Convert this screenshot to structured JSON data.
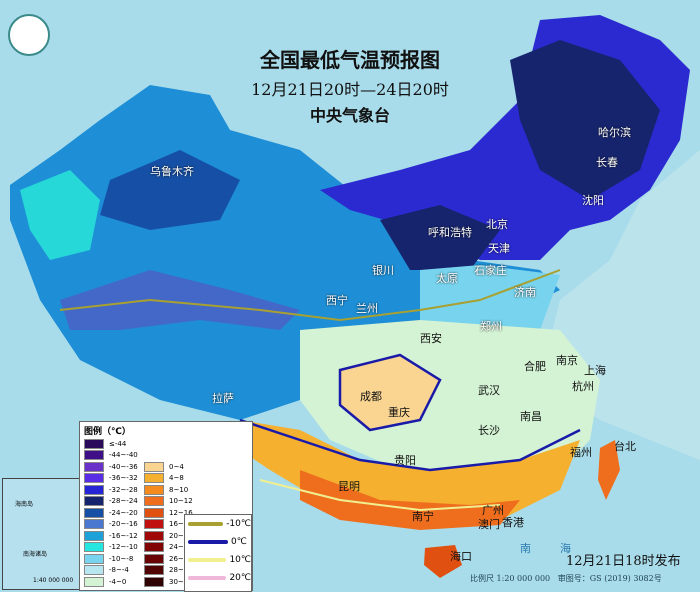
{
  "title": "全国最低气温预报图",
  "period": "12月21日20时—24日20时",
  "issuer": "中央气象台",
  "issue_time": "12月21日18时发布",
  "scale": "比例尺 1:20 000 000",
  "map_no": "审图号：GS (2019) 3082号",
  "legend": {
    "title": "图例（℃）",
    "cold": [
      {
        "label": "≤-44",
        "color": "#2a0a5a"
      },
      {
        "label": "-44~-40",
        "color": "#3e0f86"
      },
      {
        "label": "-40~-36",
        "color": "#6a32c8"
      },
      {
        "label": "-36~-32",
        "color": "#5a2ee6"
      },
      {
        "label": "-32~-28",
        "color": "#2626d6"
      },
      {
        "label": "-28~-24",
        "color": "#16246e"
      },
      {
        "label": "-24~-20",
        "color": "#1650a6"
      },
      {
        "label": "-20~-16",
        "color": "#4a78d0"
      },
      {
        "label": "-16~-12",
        "color": "#1ea0d8"
      },
      {
        "label": "-12~-10",
        "color": "#26e6e0"
      },
      {
        "label": "-10~-8",
        "color": "#78d4ee"
      },
      {
        "label": "-8~-4",
        "color": "#b8e6f0"
      },
      {
        "label": "-4~0",
        "color": "#d4f2d4"
      }
    ],
    "warm": [
      {
        "label": "0~4",
        "color": "#fad592"
      },
      {
        "label": "4~8",
        "color": "#f5b030"
      },
      {
        "label": "8~10",
        "color": "#f58a1e"
      },
      {
        "label": "10~12",
        "color": "#ee6e1e"
      },
      {
        "label": "12~16",
        "color": "#e05010"
      },
      {
        "label": "16~20",
        "color": "#c01010"
      },
      {
        "label": "20~24",
        "color": "#a00808"
      },
      {
        "label": "24~26",
        "color": "#800404"
      },
      {
        "label": "26~28",
        "color": "#6a0404"
      },
      {
        "label": "28~30",
        "color": "#500404"
      },
      {
        "label": "30~32",
        "color": "#300202"
      }
    ],
    "isolines": [
      {
        "label": "-10℃",
        "color": "#a8a030"
      },
      {
        "label": "0℃",
        "color": "#1a1aa8"
      },
      {
        "label": "10℃",
        "color": "#f0f090"
      },
      {
        "label": "20℃",
        "color": "#f0b8d8"
      }
    ]
  },
  "cities": [
    "乌鲁木齐",
    "哈尔滨",
    "长春",
    "沈阳",
    "呼和浩特",
    "北京",
    "天津",
    "石家庄",
    "太原",
    "银川",
    "济南",
    "西宁",
    "兰州",
    "郑州",
    "西安",
    "合肥",
    "南京",
    "上海",
    "杭州",
    "武汉",
    "成都",
    "重庆",
    "拉萨",
    "南昌",
    "长沙",
    "贵阳",
    "福州",
    "台北",
    "昆明",
    "南宁",
    "广州",
    "澳门",
    "香港",
    "海口"
  ],
  "inset": {
    "labels": [
      "海南岛",
      "南海诸岛"
    ],
    "scale": "1:40 000 000"
  },
  "sea_labels": [
    "南",
    "海"
  ]
}
